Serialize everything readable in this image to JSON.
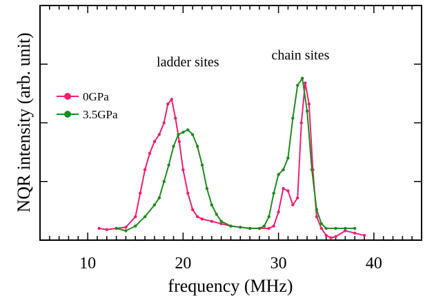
{
  "chart_data": {
    "type": "line",
    "xlabel": "frequency (MHz)",
    "ylabel": "NQR intensity (arb. unit)",
    "xlim": [
      5,
      45
    ],
    "ylim": [
      0,
      1
    ],
    "x_ticks": [
      10,
      20,
      30,
      40
    ],
    "grid": false,
    "legend_position": "left",
    "annotations": [
      {
        "text": "ladder sites",
        "x": 20.5,
        "y": 0.74
      },
      {
        "text": "chain sites",
        "x": 32.3,
        "y": 0.77
      }
    ],
    "series": [
      {
        "name": "0GPa",
        "color": "#ee1f6f",
        "x": [
          11.2,
          12,
          13,
          14,
          15,
          15.5,
          16,
          16.5,
          17,
          17.5,
          18,
          18.4,
          18.8,
          19.2,
          19.6,
          20,
          20.5,
          21,
          21.5,
          22,
          23,
          24,
          25,
          26,
          27,
          28,
          29,
          29.5,
          30,
          30.5,
          31,
          31.5,
          32,
          32.4,
          32.8,
          33.2,
          33.6,
          34,
          34.5,
          35,
          35.5,
          36,
          37,
          38,
          39
        ],
        "y": [
          0.05,
          0.045,
          0.05,
          0.055,
          0.1,
          0.2,
          0.3,
          0.37,
          0.42,
          0.45,
          0.5,
          0.58,
          0.6,
          0.52,
          0.42,
          0.3,
          0.2,
          0.13,
          0.1,
          0.09,
          0.08,
          0.07,
          0.06,
          0.055,
          0.05,
          0.05,
          0.05,
          0.06,
          0.12,
          0.22,
          0.21,
          0.15,
          0.18,
          0.5,
          0.67,
          0.58,
          0.3,
          0.1,
          0.05,
          0.02,
          0.01,
          0.015,
          0.04,
          0.03,
          0.02
        ]
      },
      {
        "name": "3.5GPa",
        "color": "#1e8a1e",
        "x": [
          13,
          14,
          15,
          16,
          17,
          17.5,
          18,
          18.5,
          19,
          19.5,
          20,
          20.5,
          21,
          21.5,
          22,
          22.5,
          23,
          23.5,
          24,
          25,
          26,
          27,
          28,
          28.5,
          29,
          29.5,
          30,
          30.5,
          31,
          31.5,
          32,
          32.5,
          33,
          33.5,
          34,
          34.5,
          35,
          36,
          37,
          38
        ],
        "y": [
          0.05,
          0.04,
          0.06,
          0.1,
          0.15,
          0.18,
          0.25,
          0.32,
          0.4,
          0.45,
          0.46,
          0.47,
          0.45,
          0.4,
          0.32,
          0.22,
          0.15,
          0.11,
          0.08,
          0.06,
          0.055,
          0.05,
          0.05,
          0.06,
          0.1,
          0.2,
          0.28,
          0.3,
          0.35,
          0.52,
          0.66,
          0.69,
          0.55,
          0.3,
          0.13,
          0.07,
          0.05,
          0.05,
          0.05,
          0.05
        ]
      }
    ]
  }
}
